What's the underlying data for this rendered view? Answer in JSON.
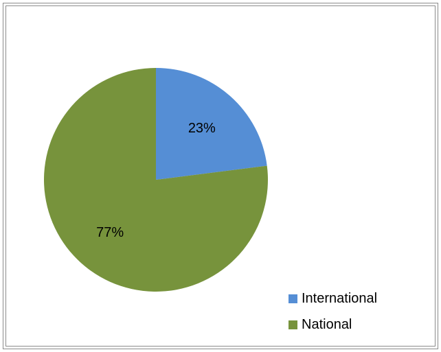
{
  "chart_data": {
    "type": "pie",
    "title": "",
    "legend_position": "bottom-right",
    "slices": [
      {
        "label": "International",
        "value": 23,
        "data_label": "23%",
        "color": "#558ED5"
      },
      {
        "label": "National",
        "value": 77,
        "data_label": "77%",
        "color": "#77933C"
      }
    ]
  }
}
